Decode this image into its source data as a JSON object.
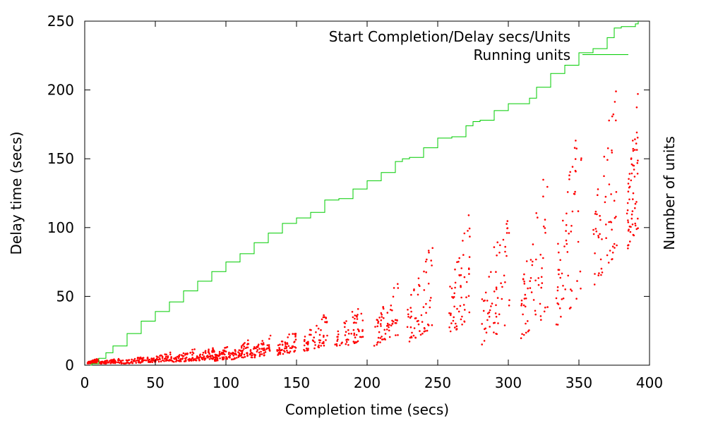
{
  "chart_data": {
    "type": "scatter",
    "title": "",
    "xlabel": "Completion time (secs)",
    "ylabel": "Delay time (secs)",
    "y2label": "Number of units",
    "xlim": [
      0,
      400
    ],
    "ylim": [
      0,
      250
    ],
    "xticks": [
      "0",
      "50",
      "100",
      "150",
      "200",
      "250",
      "300",
      "350",
      "400"
    ],
    "yticks": [
      "0",
      "50",
      "100",
      "150",
      "200",
      "250"
    ],
    "grid": false,
    "legend_position": "top-right",
    "series": [
      {
        "name": "Start Completion/Delay secs/Units",
        "kind": "scatter",
        "color": "#ff0000",
        "batches": [
          {
            "x": [
              2,
              10
            ],
            "y": [
              1,
              5
            ]
          },
          {
            "x": [
              10,
              25
            ],
            "y": [
              1,
              5
            ]
          },
          {
            "x": [
              25,
              45
            ],
            "y": [
              1,
              7
            ]
          },
          {
            "x": [
              45,
              62
            ],
            "y": [
              2,
              10
            ]
          },
          {
            "x": [
              62,
              78
            ],
            "y": [
              2,
              12
            ]
          },
          {
            "x": [
              78,
              92
            ],
            "y": [
              3,
              14
            ]
          },
          {
            "x": [
              92,
              104
            ],
            "y": [
              3,
              17
            ]
          },
          {
            "x": [
              104,
              116
            ],
            "y": [
              4,
              19
            ]
          },
          {
            "x": [
              117,
              132
            ],
            "y": [
              5,
              23
            ]
          },
          {
            "x": [
              136,
              150
            ],
            "y": [
              7,
              28
            ]
          },
          {
            "x": [
              155,
              172
            ],
            "y": [
              10,
              40
            ]
          },
          {
            "x": [
              177,
              197
            ],
            "y": [
              12,
              49
            ]
          },
          {
            "x": [
              205,
              222
            ],
            "y": [
              14,
              67
            ]
          },
          {
            "x": [
              228,
              247
            ],
            "y": [
              16,
              93
            ]
          },
          {
            "x": [
              258,
              273
            ],
            "y": [
              20,
              119
            ]
          },
          {
            "x": [
              281,
              301
            ],
            "y": [
              13,
              127
            ]
          },
          {
            "x": [
              309,
              328
            ],
            "y": [
              16,
              156
            ]
          },
          {
            "x": [
              334,
              352
            ],
            "y": [
              28,
              189
            ]
          },
          {
            "x": [
              360,
              377
            ],
            "y": [
              57,
              211
            ]
          },
          {
            "x": [
              384,
              392
            ],
            "y": [
              82,
              201
            ]
          }
        ]
      },
      {
        "name": "Running units",
        "kind": "line",
        "color": "#00cc00",
        "x": [
          0,
          5,
          10,
          15,
          20,
          30,
          40,
          50,
          60,
          70,
          80,
          90,
          100,
          110,
          120,
          130,
          140,
          150,
          155,
          160,
          170,
          180,
          190,
          200,
          210,
          220,
          225,
          230,
          240,
          250,
          260,
          270,
          275,
          280,
          290,
          300,
          310,
          315,
          320,
          330,
          340,
          350,
          355,
          360,
          370,
          375,
          380,
          390,
          392
        ],
        "y": [
          0,
          1,
          5,
          9,
          14,
          23,
          32,
          39,
          46,
          54,
          61,
          68,
          75,
          81,
          89,
          96,
          103,
          107,
          107,
          111,
          120,
          121,
          128,
          134,
          140,
          148,
          150,
          151,
          158,
          165,
          166,
          174,
          177,
          178,
          185,
          190,
          190,
          194,
          202,
          212,
          218,
          227,
          227,
          230,
          238,
          245,
          246,
          248,
          250
        ]
      }
    ]
  }
}
